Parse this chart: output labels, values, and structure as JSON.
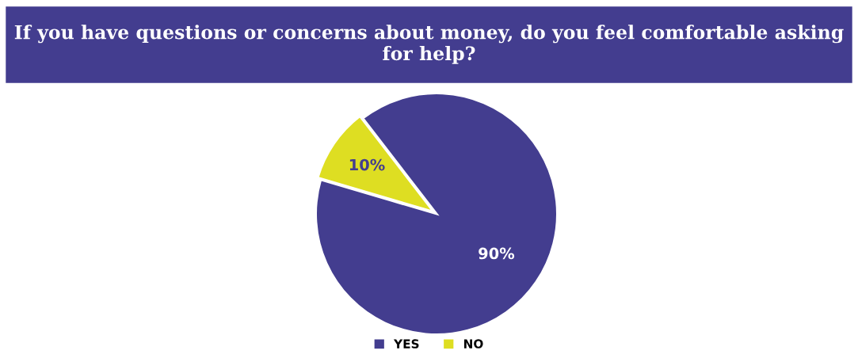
{
  "chart_data": {
    "type": "pie",
    "title": "If you have questions or concerns about money, do you feel comfortable asking for help?",
    "categories": [
      "YES",
      "NO"
    ],
    "values": [
      90,
      10
    ],
    "colors": [
      "#433d8f",
      "#dede22"
    ],
    "value_labels": [
      "90%",
      "10%"
    ],
    "legend": "bottom"
  }
}
